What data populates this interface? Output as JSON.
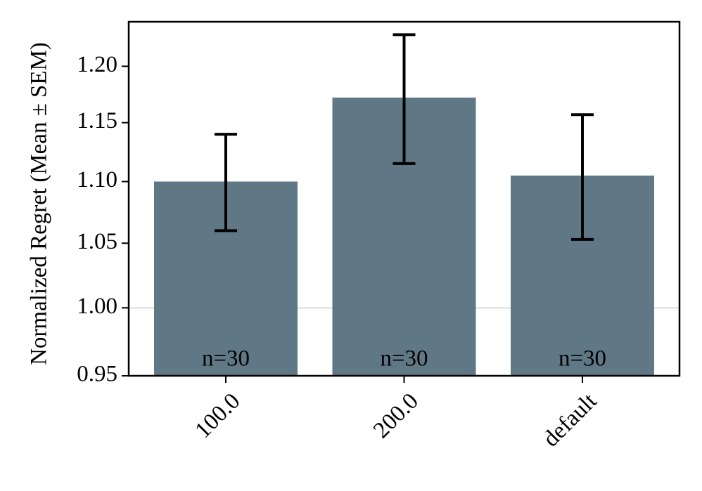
{
  "chart_data": {
    "type": "bar",
    "ylabel": "Normalized Regret (Mean ± SEM)",
    "categories": [
      "100.0",
      "200.0",
      "default"
    ],
    "values": [
      1.1,
      1.172,
      1.105
    ],
    "errors": [
      0.04,
      0.057,
      0.052
    ],
    "annotations": [
      "n=30",
      "n=30",
      "n=30"
    ],
    "color": "#607885",
    "log_scale": true,
    "reference_line": 1.0,
    "ylim": [
      0.95,
      1.241
    ],
    "yticks": [
      {
        "value": 0.95,
        "label": "0.95"
      },
      {
        "value": 1.0,
        "label": "1.00"
      },
      {
        "value": 1.05,
        "label": "1.05"
      },
      {
        "value": 1.1,
        "label": "1.10"
      },
      {
        "value": 1.15,
        "label": "1.15"
      },
      {
        "value": 1.2,
        "label": "1.20"
      }
    ]
  }
}
